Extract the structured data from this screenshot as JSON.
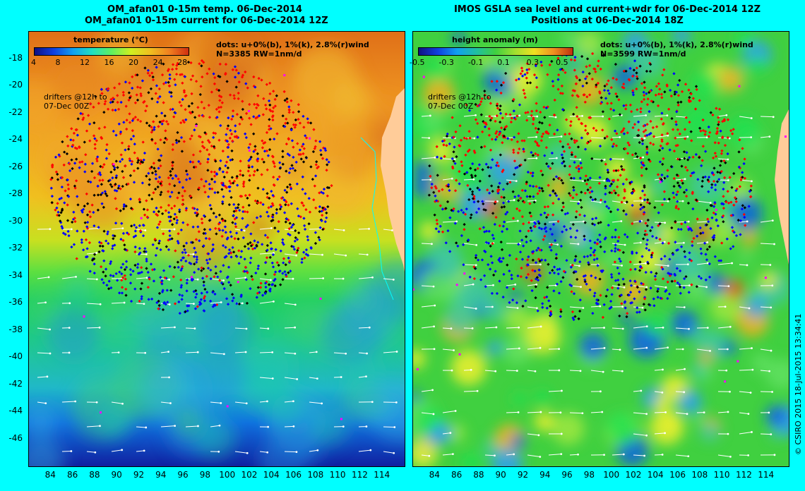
{
  "left_panel": {
    "title_line1": "OM_afan01 0-15m temp. 06-Dec-2014",
    "title_line2": "OM_afan01 0-15m current for 06-Dec-2014 12Z",
    "colorbar_title": "temperature (°C)",
    "colorbar_ticks": [
      "4",
      "8",
      "12",
      "16",
      "20",
      "24",
      "28"
    ],
    "dots_legend": "dots: u+0%(b), 1%(k), 2.8%(r)wind",
    "dots_count": "N=3385 RW=1nm/d",
    "drifters_note_1": "drifters @12h to",
    "drifters_note_2": "07-Dec 00Z"
  },
  "right_panel": {
    "title_line1": "IMOS GSLA sea level and current+wdr for 06-Dec-2014 12Z",
    "title_line2": "Positions at 06-Dec-2014 18Z",
    "colorbar_title": "height anomaly (m)",
    "colorbar_ticks": [
      "-0.5",
      "-0.3",
      "-0.1",
      "0.1",
      "0.3",
      "0.5"
    ],
    "dots_legend": "dots: u+0%(b), 1%(k), 2.8%(r)wind",
    "dots_count": "N=3599 RW=1nm/d",
    "drifters_note_1": "drifters @12h to",
    "drifters_note_2": "07-Dec 00Z"
  },
  "axes": {
    "y_labels": [
      "-18",
      "-20",
      "-22",
      "-24",
      "-26",
      "-28",
      "-30",
      "-32",
      "-34",
      "-36",
      "-38",
      "-40",
      "-42",
      "-44",
      "-46"
    ],
    "x_labels": [
      "84",
      "86",
      "88",
      "90",
      "92",
      "94",
      "96",
      "98",
      "100",
      "102",
      "104",
      "106",
      "108",
      "110",
      "112",
      "114"
    ],
    "lat_range": [
      -48,
      -16
    ],
    "lon_range": [
      82,
      116
    ]
  },
  "credit": "© CSIRO 2015   18-Jul-2015 13:34:41",
  "colors": {
    "background": "#00ffff",
    "land": "#ffcc99",
    "dot_blue": "#0000ff",
    "dot_black": "#000000",
    "dot_red": "#ff0000",
    "dot_magenta": "#ff00ff"
  }
}
